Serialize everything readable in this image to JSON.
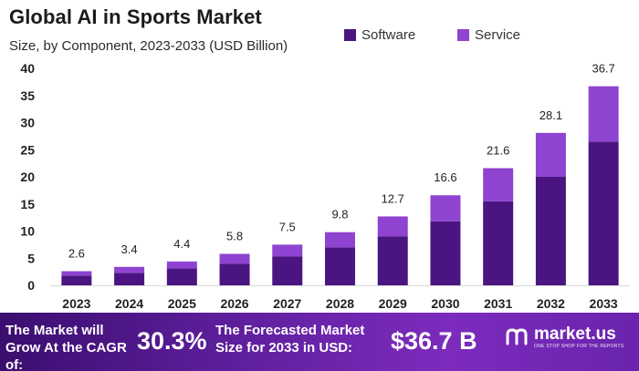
{
  "chart_data": {
    "type": "bar",
    "stacked": true,
    "title": "Global AI in Sports Market",
    "subtitle": "Size, by Component, 2023-2033 (USD Billion)",
    "categories": [
      "2023",
      "2024",
      "2025",
      "2026",
      "2027",
      "2028",
      "2029",
      "2030",
      "2031",
      "2032",
      "2033"
    ],
    "series": [
      {
        "name": "Software",
        "color": "#4a1580",
        "values": [
          1.8,
          2.3,
          3.1,
          4.0,
          5.3,
          7.0,
          9.0,
          11.8,
          15.5,
          20.0,
          26.5
        ]
      },
      {
        "name": "Service",
        "color": "#8e44d0",
        "values": [
          0.8,
          1.1,
          1.3,
          1.8,
          2.2,
          2.8,
          3.7,
          4.8,
          6.1,
          8.1,
          10.2
        ]
      }
    ],
    "totals": [
      2.6,
      3.4,
      4.4,
      5.8,
      7.5,
      9.8,
      12.7,
      16.6,
      21.6,
      28.1,
      36.7
    ],
    "total_labels": [
      "2.6",
      "3.4",
      "4.4",
      "5.8",
      "7.5",
      "9.8",
      "12.7",
      "16.6",
      "21.6",
      "28.1",
      "36.7"
    ],
    "ylim": [
      0,
      40
    ],
    "yticks": [
      0,
      5,
      10,
      15,
      20,
      25,
      30,
      35,
      40
    ],
    "legend": "top-right",
    "grid": false
  },
  "banner": {
    "cagr_text": "The Market will Grow At the CAGR of:",
    "cagr_value": "30.3%",
    "forecast_text": "The Forecasted Market Size for 2033 in USD:",
    "forecast_value": "$36.7 B",
    "brand_name": "market.us",
    "brand_tagline": "ONE STOP SHOP FOR THE REPORTS",
    "brand_icon": "market-us-logo"
  }
}
